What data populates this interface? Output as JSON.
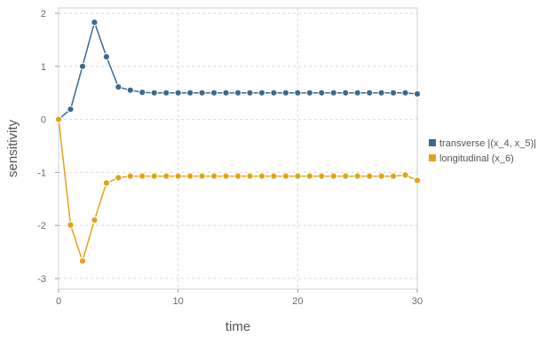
{
  "chart_data": {
    "type": "line",
    "xlabel": "time",
    "ylabel": "sensitivity",
    "xlim": [
      0,
      30
    ],
    "ylim": [
      -3.2,
      2.1
    ],
    "xticks": [
      0,
      10,
      20,
      30
    ],
    "yticks": [
      -3,
      -2,
      -1,
      0,
      1,
      2
    ],
    "grid": true,
    "legend_position": "right",
    "x": [
      0,
      1,
      2,
      3,
      4,
      5,
      6,
      7,
      8,
      9,
      10,
      11,
      12,
      13,
      14,
      15,
      16,
      17,
      18,
      19,
      20,
      21,
      22,
      23,
      24,
      25,
      26,
      27,
      28,
      29,
      30
    ],
    "series": [
      {
        "name": "transverse |(x_4, x_5)|",
        "color": "#3a6a8f",
        "values": [
          0,
          0.19,
          1.0,
          1.83,
          1.18,
          0.61,
          0.55,
          0.51,
          0.5,
          0.5,
          0.5,
          0.5,
          0.5,
          0.5,
          0.5,
          0.5,
          0.5,
          0.5,
          0.5,
          0.5,
          0.5,
          0.5,
          0.5,
          0.5,
          0.5,
          0.5,
          0.5,
          0.5,
          0.5,
          0.5,
          0.48
        ]
      },
      {
        "name": "longitudinal (x_6)",
        "color": "#e3a21a",
        "values": [
          0,
          -1.99,
          -2.67,
          -1.9,
          -1.2,
          -1.1,
          -1.07,
          -1.07,
          -1.07,
          -1.07,
          -1.07,
          -1.07,
          -1.07,
          -1.07,
          -1.07,
          -1.07,
          -1.07,
          -1.07,
          -1.07,
          -1.07,
          -1.07,
          -1.07,
          -1.07,
          -1.07,
          -1.07,
          -1.07,
          -1.07,
          -1.07,
          -1.07,
          -1.05,
          -1.15
        ]
      }
    ]
  }
}
